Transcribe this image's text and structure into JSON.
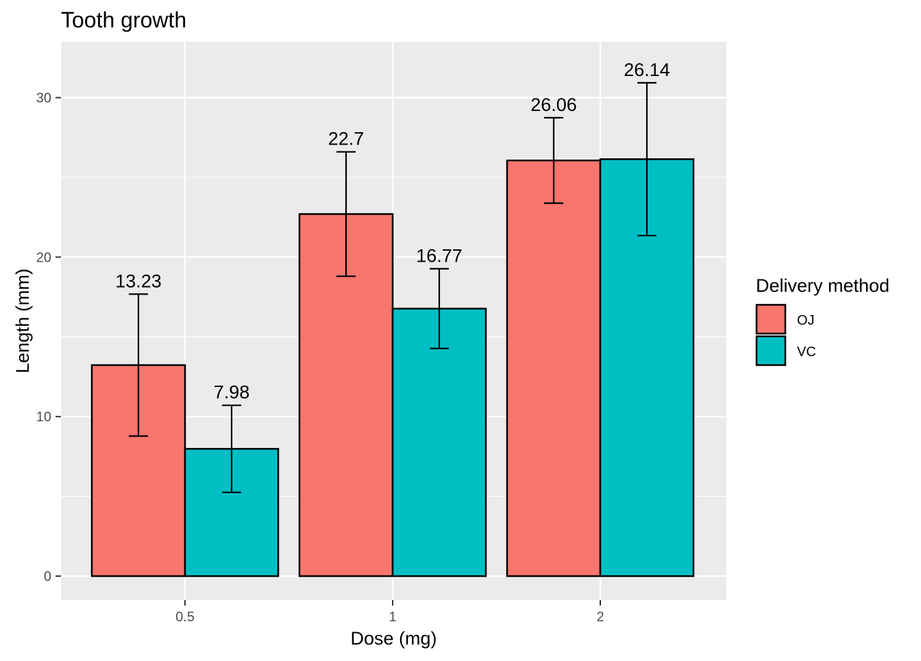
{
  "chart_data": {
    "type": "bar",
    "title": "Tooth growth",
    "xlabel": "Dose (mg)",
    "ylabel": "Length (mm)",
    "categories": [
      "0.5",
      "1",
      "2"
    ],
    "series": [
      {
        "name": "OJ",
        "color": "#F8766D",
        "values": [
          13.23,
          22.7,
          26.06
        ],
        "labels": [
          "13.23",
          "22.7",
          "26.06"
        ],
        "error_low": [
          8.78,
          18.8,
          23.38
        ],
        "error_high": [
          17.68,
          26.6,
          28.74
        ]
      },
      {
        "name": "VC",
        "color": "#00BFC4",
        "values": [
          7.98,
          16.77,
          26.14
        ],
        "labels": [
          "7.98",
          "16.77",
          "26.14"
        ],
        "error_low": [
          5.25,
          14.27,
          21.35
        ],
        "error_high": [
          10.71,
          19.27,
          30.93
        ]
      }
    ],
    "yticks": [
      "0",
      "10",
      "20",
      "30"
    ],
    "ylim": [
      -1.5,
      33.5
    ],
    "grid": true,
    "panel_background": "#EBEBEB",
    "legend": {
      "title": "Delivery method",
      "position": "right"
    }
  }
}
